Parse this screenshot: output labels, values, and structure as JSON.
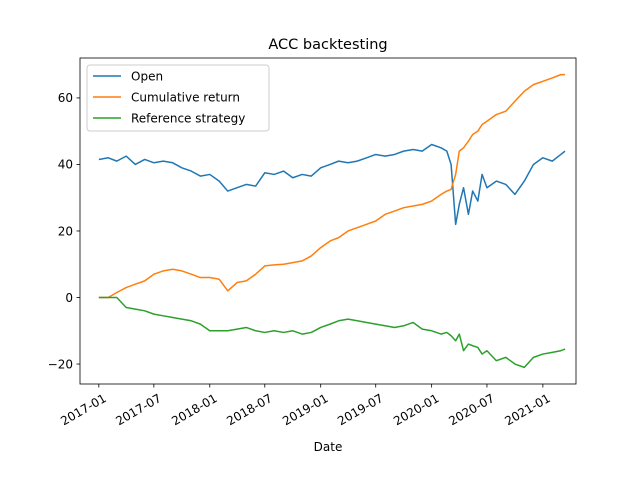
{
  "chart_data": {
    "type": "line",
    "title": "ACC backtesting",
    "xlabel": "Date",
    "ylabel": "",
    "xlim": [
      "2016-10-31",
      "2021-04-20"
    ],
    "ylim": [
      -26,
      72
    ],
    "x_ticks": [
      "2017-01",
      "2017-07",
      "2018-01",
      "2018-07",
      "2019-01",
      "2019-07",
      "2020-01",
      "2020-07",
      "2021-01"
    ],
    "y_ticks": [
      -20,
      0,
      20,
      40,
      60
    ],
    "y_tick_labels": [
      "−20",
      "0",
      "20",
      "40",
      "60"
    ],
    "legend_position": "top-left",
    "grid": false,
    "series": [
      {
        "name": "Open",
        "color": "#1f77b4",
        "x": [
          "2017-01-01",
          "2017-02-01",
          "2017-03-01",
          "2017-04-01",
          "2017-05-01",
          "2017-06-01",
          "2017-07-01",
          "2017-08-01",
          "2017-09-01",
          "2017-10-01",
          "2017-11-01",
          "2017-12-01",
          "2018-01-01",
          "2018-02-01",
          "2018-03-01",
          "2018-04-01",
          "2018-05-01",
          "2018-06-01",
          "2018-07-01",
          "2018-08-01",
          "2018-09-01",
          "2018-10-01",
          "2018-11-01",
          "2018-12-01",
          "2019-01-01",
          "2019-02-01",
          "2019-03-01",
          "2019-04-01",
          "2019-05-01",
          "2019-06-01",
          "2019-07-01",
          "2019-08-01",
          "2019-09-01",
          "2019-10-01",
          "2019-11-01",
          "2019-12-01",
          "2020-01-01",
          "2020-02-01",
          "2020-02-20",
          "2020-03-05",
          "2020-03-20",
          "2020-04-01",
          "2020-04-15",
          "2020-05-01",
          "2020-05-15",
          "2020-06-01",
          "2020-06-15",
          "2020-07-01",
          "2020-08-01",
          "2020-09-01",
          "2020-10-01",
          "2020-11-01",
          "2020-12-01",
          "2021-01-01",
          "2021-02-01",
          "2021-03-01",
          "2021-03-15"
        ],
        "y": [
          41.5,
          42,
          41,
          42.5,
          40,
          41.5,
          40.5,
          41,
          40.5,
          39,
          38,
          36.5,
          37,
          35,
          32,
          33,
          34,
          33.5,
          37.5,
          37,
          38,
          36,
          37,
          36.5,
          39,
          40,
          41,
          40.5,
          41,
          42,
          43,
          42.5,
          43,
          44,
          44.5,
          44,
          46,
          45,
          44,
          40,
          22,
          28,
          33,
          25,
          32,
          29,
          37,
          33,
          35,
          34,
          31,
          35,
          40,
          42,
          41,
          43,
          44
        ]
      },
      {
        "name": "Cumulative return",
        "color": "#ff7f0e",
        "x": [
          "2017-01-01",
          "2017-02-01",
          "2017-03-01",
          "2017-04-01",
          "2017-05-01",
          "2017-06-01",
          "2017-07-01",
          "2017-08-01",
          "2017-09-01",
          "2017-10-01",
          "2017-11-01",
          "2017-12-01",
          "2018-01-01",
          "2018-02-01",
          "2018-03-01",
          "2018-04-01",
          "2018-05-01",
          "2018-06-01",
          "2018-07-01",
          "2018-08-01",
          "2018-09-01",
          "2018-10-01",
          "2018-11-01",
          "2018-12-01",
          "2019-01-01",
          "2019-02-01",
          "2019-03-01",
          "2019-04-01",
          "2019-05-01",
          "2019-06-01",
          "2019-07-01",
          "2019-08-01",
          "2019-09-01",
          "2019-10-01",
          "2019-11-01",
          "2019-12-01",
          "2020-01-01",
          "2020-02-01",
          "2020-02-20",
          "2020-03-05",
          "2020-03-20",
          "2020-04-01",
          "2020-04-15",
          "2020-05-01",
          "2020-05-15",
          "2020-06-01",
          "2020-06-15",
          "2020-07-01",
          "2020-08-01",
          "2020-09-01",
          "2020-10-01",
          "2020-11-01",
          "2020-12-01",
          "2021-01-01",
          "2021-02-01",
          "2021-03-01",
          "2021-03-15"
        ],
        "y": [
          0,
          0,
          1.5,
          3,
          4,
          5,
          7,
          8,
          8.5,
          8,
          7,
          6,
          6,
          5.5,
          2,
          4.5,
          5,
          7,
          9.5,
          9.8,
          10,
          10.5,
          11,
          12.5,
          15,
          17,
          18,
          20,
          21,
          22,
          23,
          25,
          26,
          27,
          27.5,
          28,
          29,
          31,
          32,
          32.5,
          37,
          44,
          45,
          47,
          49,
          50,
          52,
          53,
          55,
          56,
          59,
          62,
          64,
          65,
          66,
          67,
          67
        ]
      },
      {
        "name": "Reference strategy",
        "color": "#2ca02c",
        "x": [
          "2017-01-01",
          "2017-02-01",
          "2017-03-01",
          "2017-04-01",
          "2017-05-01",
          "2017-06-01",
          "2017-07-01",
          "2017-08-01",
          "2017-09-01",
          "2017-10-01",
          "2017-11-01",
          "2017-12-01",
          "2018-01-01",
          "2018-02-01",
          "2018-03-01",
          "2018-04-01",
          "2018-05-01",
          "2018-06-01",
          "2018-07-01",
          "2018-08-01",
          "2018-09-01",
          "2018-10-01",
          "2018-11-01",
          "2018-12-01",
          "2019-01-01",
          "2019-02-01",
          "2019-03-01",
          "2019-04-01",
          "2019-05-01",
          "2019-06-01",
          "2019-07-01",
          "2019-08-01",
          "2019-09-01",
          "2019-10-01",
          "2019-11-01",
          "2019-12-01",
          "2020-01-01",
          "2020-02-01",
          "2020-02-20",
          "2020-03-05",
          "2020-03-20",
          "2020-04-01",
          "2020-04-15",
          "2020-05-01",
          "2020-05-15",
          "2020-06-01",
          "2020-06-15",
          "2020-07-01",
          "2020-08-01",
          "2020-09-01",
          "2020-10-01",
          "2020-11-01",
          "2020-12-01",
          "2021-01-01",
          "2021-02-01",
          "2021-03-01",
          "2021-03-15"
        ],
        "y": [
          0,
          0,
          0,
          -3,
          -3.5,
          -4,
          -5,
          -5.5,
          -6,
          -6.5,
          -7,
          -8,
          -10,
          -10,
          -10,
          -9.5,
          -9,
          -10,
          -10.5,
          -10,
          -10.5,
          -10,
          -11,
          -10.5,
          -9,
          -8,
          -7,
          -6.5,
          -7,
          -7.5,
          -8,
          -8.5,
          -9,
          -8.5,
          -7.5,
          -9.5,
          -10,
          -11,
          -10.5,
          -11.5,
          -13,
          -11,
          -16,
          -14,
          -14.5,
          -15,
          -17,
          -16,
          -19,
          -18,
          -20,
          -21,
          -18,
          -17,
          -16.5,
          -16,
          -15.5
        ]
      }
    ]
  }
}
